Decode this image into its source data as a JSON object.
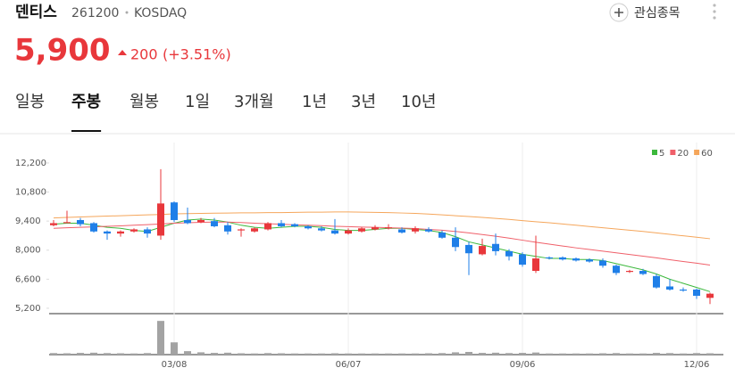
{
  "header": {
    "name": "덴티스",
    "code": "261200",
    "market": "KOSDAQ",
    "watch": "관심종목",
    "price": "5,900",
    "change": "200",
    "change_pct": "(+3.51%)"
  },
  "tabs": [
    "일봉",
    "주봉",
    "월봉",
    "1일",
    "3개월",
    "1년",
    "3년",
    "10년"
  ],
  "active_tab": 1,
  "chart_data": {
    "type": "candlestick",
    "x": [
      null,
      null,
      null,
      null,
      null,
      null,
      null,
      null,
      null,
      "03/08",
      null,
      null,
      null,
      null,
      null,
      null,
      null,
      null,
      null,
      null,
      null,
      null,
      "06/07",
      null,
      null,
      null,
      null,
      null,
      null,
      null,
      null,
      null,
      null,
      null,
      null,
      "09/06",
      null,
      null,
      null,
      null,
      null,
      null,
      null,
      null,
      null,
      null,
      null,
      null,
      "12/06",
      null
    ],
    "open": [
      9200,
      9300,
      9450,
      9300,
      8900,
      8800,
      8900,
      9000,
      8700,
      10300,
      9450,
      9350,
      9400,
      9200,
      8950,
      8900,
      9000,
      9300,
      9250,
      9150,
      9050,
      8950,
      8800,
      8900,
      9000,
      9050,
      9000,
      8900,
      9000,
      8850,
      8600,
      8250,
      7800,
      8300,
      7950,
      7800,
      7000,
      7650,
      7650,
      7600,
      7550,
      7500,
      7250,
      6950,
      7000,
      6750,
      6250,
      6100,
      6100,
      5700
    ],
    "high": [
      9450,
      9900,
      9550,
      9350,
      8950,
      8950,
      9050,
      9100,
      11900,
      10350,
      10050,
      9550,
      9550,
      9350,
      9050,
      9100,
      9350,
      9450,
      9300,
      9200,
      9150,
      9500,
      9050,
      9100,
      9200,
      9250,
      9100,
      9150,
      9100,
      8950,
      9100,
      8400,
      8550,
      8800,
      8050,
      7900,
      8700,
      7700,
      7700,
      7650,
      7600,
      7600,
      7300,
      7050,
      7100,
      6850,
      6600,
      6200,
      6150,
      5950
    ],
    "low": [
      9150,
      9300,
      9150,
      8850,
      8500,
      8650,
      8850,
      8600,
      8500,
      9350,
      9250,
      9300,
      9100,
      8750,
      8650,
      8850,
      8950,
      9100,
      9100,
      9000,
      8900,
      8750,
      8750,
      8850,
      8950,
      9000,
      8800,
      8800,
      8850,
      8550,
      7950,
      6800,
      7750,
      7750,
      7500,
      7200,
      6900,
      7550,
      7500,
      7450,
      7400,
      7150,
      6800,
      6900,
      6800,
      6150,
      6050,
      6000,
      5650,
      5400
    ],
    "close": [
      9300,
      9350,
      9250,
      8900,
      8800,
      8900,
      9000,
      8800,
      10250,
      9450,
      9300,
      9450,
      9150,
      8900,
      9000,
      9050,
      9300,
      9150,
      9150,
      9050,
      8950,
      8800,
      8950,
      9050,
      9100,
      9100,
      8850,
      9050,
      8900,
      8600,
      8150,
      7850,
      8200,
      7950,
      7700,
      7300,
      7600,
      7600,
      7550,
      7500,
      7450,
      7250,
      6900,
      7000,
      6850,
      6200,
      6100,
      6050,
      5800,
      5900
    ],
    "up_color": "#e8373b",
    "down_color": "#1f7fe8",
    "ylim": [
      4940,
      13400
    ],
    "yticks": [
      {
        "value": 5200,
        "label": "5,200"
      },
      {
        "value": 6600,
        "label": "6,600"
      },
      {
        "value": 8000,
        "label": "8,000"
      },
      {
        "value": 9400,
        "label": "9,400"
      },
      {
        "value": 10800,
        "label": "10,800"
      },
      {
        "value": 12200,
        "label": "12,200"
      }
    ],
    "series": [
      {
        "name": "5",
        "color": "#3cb83c",
        "values": [
          9250,
          9300,
          9300,
          9200,
          9100,
          9050,
          8950,
          8900,
          9100,
          9300,
          9450,
          9500,
          9450,
          9350,
          9200,
          9100,
          9050,
          9100,
          9150,
          9150,
          9100,
          9000,
          8950,
          8950,
          9000,
          9050,
          9050,
          9000,
          8950,
          8850,
          8650,
          8400,
          8250,
          8100,
          7950,
          7800,
          7700,
          7600,
          7600,
          7550,
          7550,
          7500,
          7350,
          7200,
          7050,
          6850,
          6600,
          6400,
          6200,
          6000
        ]
      },
      {
        "name": "20",
        "color": "#f0606a",
        "values": [
          9050,
          9080,
          9100,
          9120,
          9150,
          9170,
          9200,
          9230,
          9260,
          9300,
          9320,
          9340,
          9350,
          9350,
          9330,
          9300,
          9270,
          9250,
          9220,
          9200,
          9180,
          9150,
          9130,
          9110,
          9100,
          9080,
          9060,
          9040,
          9000,
          8960,
          8900,
          8830,
          8750,
          8670,
          8580,
          8480,
          8380,
          8290,
          8200,
          8110,
          8030,
          7950,
          7870,
          7790,
          7710,
          7630,
          7540,
          7450,
          7370,
          7280
        ]
      },
      {
        "name": "60",
        "color": "#f5a65b",
        "values": [
          9550,
          9580,
          9600,
          9620,
          9640,
          9660,
          9680,
          9700,
          9720,
          9750,
          9760,
          9770,
          9780,
          9790,
          9800,
          9800,
          9810,
          9810,
          9820,
          9830,
          9830,
          9840,
          9840,
          9830,
          9820,
          9810,
          9790,
          9770,
          9740,
          9700,
          9660,
          9620,
          9580,
          9530,
          9480,
          9420,
          9370,
          9320,
          9260,
          9200,
          9140,
          9080,
          9020,
          8960,
          8900,
          8830,
          8760,
          8690,
          8620,
          8550
        ]
      }
    ],
    "volume": [
      40,
      35,
      45,
      50,
      40,
      35,
      30,
      40,
      880,
      320,
      90,
      60,
      45,
      50,
      35,
      30,
      40,
      35,
      30,
      30,
      30,
      35,
      30,
      30,
      30,
      30,
      30,
      30,
      35,
      40,
      60,
      70,
      45,
      50,
      40,
      45,
      55,
      30,
      30,
      30,
      30,
      35,
      40,
      30,
      30,
      45,
      40,
      30,
      40,
      35
    ],
    "volume_ylim": [
      0,
      1000
    ],
    "volume_color": "#a3a3a3"
  }
}
